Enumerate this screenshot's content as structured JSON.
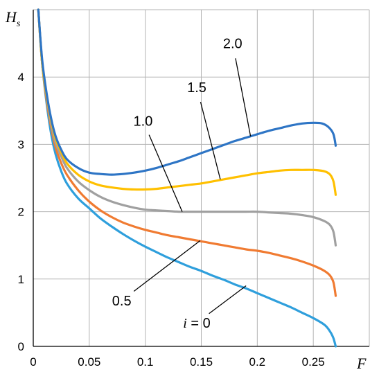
{
  "chart_data": {
    "type": "line",
    "title": "",
    "xlabel": "F",
    "ylabel": {
      "main": "H",
      "sub": "s"
    },
    "xlim": [
      0,
      0.3
    ],
    "ylim": [
      0,
      5
    ],
    "x_ticks": [
      "0",
      "0.05",
      "0.1",
      "0.15",
      "0.2",
      "0.25"
    ],
    "y_ticks": [
      "0",
      "1",
      "2",
      "3",
      "4"
    ],
    "grid": true,
    "series": [
      {
        "name": "i = 0",
        "color": "#2f9fdc",
        "points": [
          [
            0.0045,
            5.0
          ],
          [
            0.008,
            4.2
          ],
          [
            0.012,
            3.6
          ],
          [
            0.016,
            3.15
          ],
          [
            0.02,
            2.85
          ],
          [
            0.025,
            2.6
          ],
          [
            0.03,
            2.42
          ],
          [
            0.04,
            2.2
          ],
          [
            0.05,
            2.05
          ],
          [
            0.06,
            1.9
          ],
          [
            0.07,
            1.78
          ],
          [
            0.08,
            1.67
          ],
          [
            0.09,
            1.57
          ],
          [
            0.1,
            1.48
          ],
          [
            0.11,
            1.4
          ],
          [
            0.12,
            1.32
          ],
          [
            0.13,
            1.25
          ],
          [
            0.14,
            1.18
          ],
          [
            0.15,
            1.12
          ],
          [
            0.16,
            1.05
          ],
          [
            0.17,
            0.99
          ],
          [
            0.18,
            0.92
          ],
          [
            0.19,
            0.86
          ],
          [
            0.2,
            0.79
          ],
          [
            0.21,
            0.72
          ],
          [
            0.22,
            0.65
          ],
          [
            0.23,
            0.58
          ],
          [
            0.24,
            0.5
          ],
          [
            0.25,
            0.42
          ],
          [
            0.26,
            0.32
          ],
          [
            0.265,
            0.22
          ],
          [
            0.268,
            0.12
          ],
          [
            0.27,
            0.0
          ]
        ]
      },
      {
        "name": "0.5",
        "color": "#f07b32",
        "points": [
          [
            0.0045,
            5.0
          ],
          [
            0.008,
            4.2
          ],
          [
            0.012,
            3.65
          ],
          [
            0.016,
            3.25
          ],
          [
            0.02,
            2.95
          ],
          [
            0.025,
            2.72
          ],
          [
            0.03,
            2.55
          ],
          [
            0.04,
            2.32
          ],
          [
            0.05,
            2.15
          ],
          [
            0.06,
            2.02
          ],
          [
            0.07,
            1.92
          ],
          [
            0.08,
            1.84
          ],
          [
            0.09,
            1.78
          ],
          [
            0.1,
            1.73
          ],
          [
            0.11,
            1.69
          ],
          [
            0.12,
            1.65
          ],
          [
            0.13,
            1.62
          ],
          [
            0.14,
            1.59
          ],
          [
            0.15,
            1.56
          ],
          [
            0.16,
            1.53
          ],
          [
            0.17,
            1.5
          ],
          [
            0.18,
            1.47
          ],
          [
            0.19,
            1.44
          ],
          [
            0.2,
            1.42
          ],
          [
            0.21,
            1.39
          ],
          [
            0.22,
            1.35
          ],
          [
            0.23,
            1.31
          ],
          [
            0.24,
            1.26
          ],
          [
            0.25,
            1.2
          ],
          [
            0.26,
            1.12
          ],
          [
            0.265,
            1.05
          ],
          [
            0.268,
            0.95
          ],
          [
            0.27,
            0.75
          ]
        ]
      },
      {
        "name": "1.0",
        "color": "#a0a0a0",
        "points": [
          [
            0.0045,
            5.0
          ],
          [
            0.008,
            4.2
          ],
          [
            0.012,
            3.7
          ],
          [
            0.016,
            3.3
          ],
          [
            0.02,
            3.02
          ],
          [
            0.025,
            2.82
          ],
          [
            0.03,
            2.65
          ],
          [
            0.04,
            2.45
          ],
          [
            0.05,
            2.32
          ],
          [
            0.06,
            2.22
          ],
          [
            0.07,
            2.15
          ],
          [
            0.08,
            2.1
          ],
          [
            0.09,
            2.06
          ],
          [
            0.1,
            2.03
          ],
          [
            0.11,
            2.02
          ],
          [
            0.12,
            2.01
          ],
          [
            0.13,
            2.0
          ],
          [
            0.14,
            2.0
          ],
          [
            0.15,
            2.0
          ],
          [
            0.16,
            2.0
          ],
          [
            0.17,
            2.0
          ],
          [
            0.18,
            2.0
          ],
          [
            0.19,
            2.0
          ],
          [
            0.2,
            2.0
          ],
          [
            0.21,
            1.99
          ],
          [
            0.22,
            1.98
          ],
          [
            0.23,
            1.97
          ],
          [
            0.24,
            1.95
          ],
          [
            0.25,
            1.92
          ],
          [
            0.26,
            1.86
          ],
          [
            0.265,
            1.8
          ],
          [
            0.268,
            1.7
          ],
          [
            0.27,
            1.5
          ]
        ]
      },
      {
        "name": "1.5",
        "color": "#ffc000",
        "points": [
          [
            0.0045,
            5.0
          ],
          [
            0.008,
            4.2
          ],
          [
            0.012,
            3.72
          ],
          [
            0.016,
            3.35
          ],
          [
            0.02,
            3.08
          ],
          [
            0.025,
            2.88
          ],
          [
            0.03,
            2.72
          ],
          [
            0.04,
            2.55
          ],
          [
            0.05,
            2.45
          ],
          [
            0.06,
            2.39
          ],
          [
            0.07,
            2.36
          ],
          [
            0.08,
            2.34
          ],
          [
            0.09,
            2.33
          ],
          [
            0.1,
            2.33
          ],
          [
            0.11,
            2.34
          ],
          [
            0.12,
            2.36
          ],
          [
            0.13,
            2.38
          ],
          [
            0.14,
            2.4
          ],
          [
            0.15,
            2.42
          ],
          [
            0.16,
            2.45
          ],
          [
            0.17,
            2.48
          ],
          [
            0.18,
            2.51
          ],
          [
            0.19,
            2.54
          ],
          [
            0.2,
            2.57
          ],
          [
            0.21,
            2.59
          ],
          [
            0.22,
            2.61
          ],
          [
            0.23,
            2.62
          ],
          [
            0.24,
            2.62
          ],
          [
            0.25,
            2.62
          ],
          [
            0.26,
            2.6
          ],
          [
            0.265,
            2.55
          ],
          [
            0.268,
            2.45
          ],
          [
            0.27,
            2.25
          ]
        ]
      },
      {
        "name": "2.0",
        "color": "#2e75c5",
        "points": [
          [
            0.0045,
            5.0
          ],
          [
            0.008,
            4.25
          ],
          [
            0.012,
            3.75
          ],
          [
            0.016,
            3.38
          ],
          [
            0.02,
            3.12
          ],
          [
            0.025,
            2.92
          ],
          [
            0.03,
            2.78
          ],
          [
            0.04,
            2.65
          ],
          [
            0.05,
            2.58
          ],
          [
            0.06,
            2.56
          ],
          [
            0.07,
            2.55
          ],
          [
            0.08,
            2.56
          ],
          [
            0.09,
            2.58
          ],
          [
            0.1,
            2.61
          ],
          [
            0.11,
            2.65
          ],
          [
            0.12,
            2.7
          ],
          [
            0.13,
            2.75
          ],
          [
            0.14,
            2.81
          ],
          [
            0.15,
            2.87
          ],
          [
            0.16,
            2.93
          ],
          [
            0.17,
            2.99
          ],
          [
            0.18,
            3.05
          ],
          [
            0.19,
            3.1
          ],
          [
            0.2,
            3.15
          ],
          [
            0.21,
            3.2
          ],
          [
            0.22,
            3.24
          ],
          [
            0.23,
            3.28
          ],
          [
            0.24,
            3.31
          ],
          [
            0.25,
            3.32
          ],
          [
            0.258,
            3.31
          ],
          [
            0.264,
            3.25
          ],
          [
            0.268,
            3.15
          ],
          [
            0.27,
            2.98
          ]
        ]
      }
    ],
    "annotations": [
      {
        "text": "2.0",
        "series": "2.0",
        "anchor": [
          0.194,
          3.12
        ],
        "label_at": [
          0.178,
          4.5
        ]
      },
      {
        "text": "1.5",
        "series": "1.5",
        "anchor": [
          0.167,
          2.48
        ],
        "label_at": [
          0.146,
          3.85
        ]
      },
      {
        "text": "1.0",
        "series": "1.0",
        "anchor": [
          0.133,
          2.0
        ],
        "label_at": [
          0.098,
          3.35
        ]
      },
      {
        "text": "0.5",
        "series": "0.5",
        "anchor": [
          0.149,
          1.57
        ],
        "label_at": [
          0.079,
          0.68
        ]
      },
      {
        "text": "i = 0",
        "series": "i = 0",
        "anchor": [
          0.19,
          0.9
        ],
        "label_at": [
          0.146,
          0.35
        ],
        "italic_prefix": "i"
      }
    ]
  }
}
